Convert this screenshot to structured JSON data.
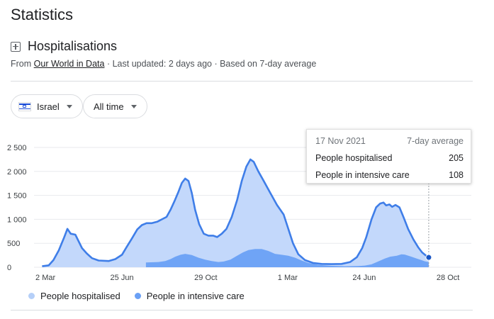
{
  "page": {
    "heading": "Statistics",
    "card_title": "Hospitalisations",
    "source_prefix": "From",
    "source_link": "Our World in Data",
    "source_suffix": "· Last updated: 2 days ago · Based on 7-day average"
  },
  "filters": {
    "country": "Israel",
    "range": "All time"
  },
  "tooltip": {
    "date": "17 Nov 2021",
    "label": "7-day average",
    "rows": [
      {
        "name": "People hospitalised",
        "value": "205"
      },
      {
        "name": "People in intensive care",
        "value": "108"
      }
    ]
  },
  "legend": [
    "People hospitalised",
    "People in intensive care"
  ],
  "colors": {
    "hospital_fill": "#c3d8fb",
    "hospital_line": "#3f7ee8",
    "icu_fill": "#6fa4f6",
    "legend_hospital": "#b5cff8",
    "legend_icu": "#6aa0f5",
    "grid": "#e8eaed",
    "marker": "#1a56c4"
  },
  "chart_data": {
    "type": "area",
    "x_unit": "days since 2 Mar 2020",
    "xlim": [
      -15,
      640
    ],
    "ylim": [
      0,
      2500
    ],
    "y_ticks": [
      0,
      500,
      1000,
      1500,
      2000,
      2500
    ],
    "y_tick_labels": [
      "0",
      "500",
      "1 000",
      "1 500",
      "2 000",
      "2 500"
    ],
    "x_ticks": [
      {
        "label": "2 Mar",
        "x": 0
      },
      {
        "label": "25 Jun",
        "x": 115
      },
      {
        "label": "29 Oct",
        "x": 241
      },
      {
        "label": "1 Mar",
        "x": 364
      },
      {
        "label": "24 Jun",
        "x": 479
      },
      {
        "label": "28 Oct",
        "x": 605
      }
    ],
    "grid": true,
    "legend_position": "bottom",
    "series": [
      {
        "name": "People hospitalised",
        "points": [
          [
            -5,
            20
          ],
          [
            5,
            40
          ],
          [
            12,
            150
          ],
          [
            20,
            350
          ],
          [
            28,
            620
          ],
          [
            33,
            800
          ],
          [
            38,
            700
          ],
          [
            45,
            680
          ],
          [
            50,
            540
          ],
          [
            55,
            400
          ],
          [
            62,
            290
          ],
          [
            70,
            190
          ],
          [
            80,
            140
          ],
          [
            95,
            130
          ],
          [
            105,
            170
          ],
          [
            115,
            260
          ],
          [
            122,
            420
          ],
          [
            130,
            600
          ],
          [
            138,
            790
          ],
          [
            145,
            880
          ],
          [
            152,
            920
          ],
          [
            160,
            920
          ],
          [
            168,
            950
          ],
          [
            175,
            1000
          ],
          [
            182,
            1050
          ],
          [
            188,
            1200
          ],
          [
            194,
            1380
          ],
          [
            200,
            1580
          ],
          [
            205,
            1760
          ],
          [
            210,
            1850
          ],
          [
            215,
            1800
          ],
          [
            220,
            1550
          ],
          [
            225,
            1200
          ],
          [
            231,
            900
          ],
          [
            238,
            700
          ],
          [
            245,
            660
          ],
          [
            252,
            660
          ],
          [
            258,
            630
          ],
          [
            265,
            700
          ],
          [
            272,
            800
          ],
          [
            280,
            1050
          ],
          [
            288,
            1400
          ],
          [
            295,
            1800
          ],
          [
            302,
            2100
          ],
          [
            308,
            2250
          ],
          [
            313,
            2200
          ],
          [
            320,
            2000
          ],
          [
            328,
            1800
          ],
          [
            338,
            1550
          ],
          [
            348,
            1300
          ],
          [
            358,
            1100
          ],
          [
            365,
            800
          ],
          [
            372,
            500
          ],
          [
            380,
            270
          ],
          [
            390,
            150
          ],
          [
            402,
            90
          ],
          [
            415,
            70
          ],
          [
            430,
            65
          ],
          [
            445,
            70
          ],
          [
            458,
            110
          ],
          [
            468,
            210
          ],
          [
            476,
            400
          ],
          [
            482,
            620
          ],
          [
            490,
            1000
          ],
          [
            497,
            1250
          ],
          [
            503,
            1330
          ],
          [
            508,
            1350
          ],
          [
            512,
            1290
          ],
          [
            517,
            1310
          ],
          [
            521,
            1260
          ],
          [
            526,
            1300
          ],
          [
            532,
            1250
          ],
          [
            538,
            1050
          ],
          [
            545,
            800
          ],
          [
            553,
            580
          ],
          [
            560,
            420
          ],
          [
            566,
            310
          ],
          [
            572,
            240
          ],
          [
            576,
            205
          ]
        ]
      },
      {
        "name": "People in intensive care",
        "points": [
          [
            151,
            0
          ],
          [
            151,
            100
          ],
          [
            170,
            110
          ],
          [
            180,
            130
          ],
          [
            188,
            170
          ],
          [
            195,
            220
          ],
          [
            203,
            260
          ],
          [
            210,
            280
          ],
          [
            220,
            255
          ],
          [
            230,
            200
          ],
          [
            240,
            160
          ],
          [
            250,
            130
          ],
          [
            260,
            110
          ],
          [
            268,
            120
          ],
          [
            278,
            160
          ],
          [
            288,
            240
          ],
          [
            297,
            310
          ],
          [
            305,
            360
          ],
          [
            315,
            380
          ],
          [
            325,
            380
          ],
          [
            335,
            340
          ],
          [
            345,
            280
          ],
          [
            355,
            260
          ],
          [
            365,
            240
          ],
          [
            375,
            200
          ],
          [
            385,
            140
          ],
          [
            395,
            90
          ],
          [
            410,
            50
          ],
          [
            430,
            30
          ],
          [
            450,
            20
          ],
          [
            470,
            25
          ],
          [
            480,
            35
          ],
          [
            490,
            60
          ],
          [
            500,
            120
          ],
          [
            510,
            180
          ],
          [
            518,
            220
          ],
          [
            528,
            240
          ],
          [
            535,
            270
          ],
          [
            540,
            265
          ],
          [
            550,
            220
          ],
          [
            558,
            180
          ],
          [
            565,
            150
          ],
          [
            570,
            125
          ],
          [
            576,
            108
          ]
        ]
      }
    ],
    "highlight": {
      "date": "17 Nov 2021",
      "x": 576,
      "hospitalised": 205,
      "intensive_care": 108
    }
  }
}
